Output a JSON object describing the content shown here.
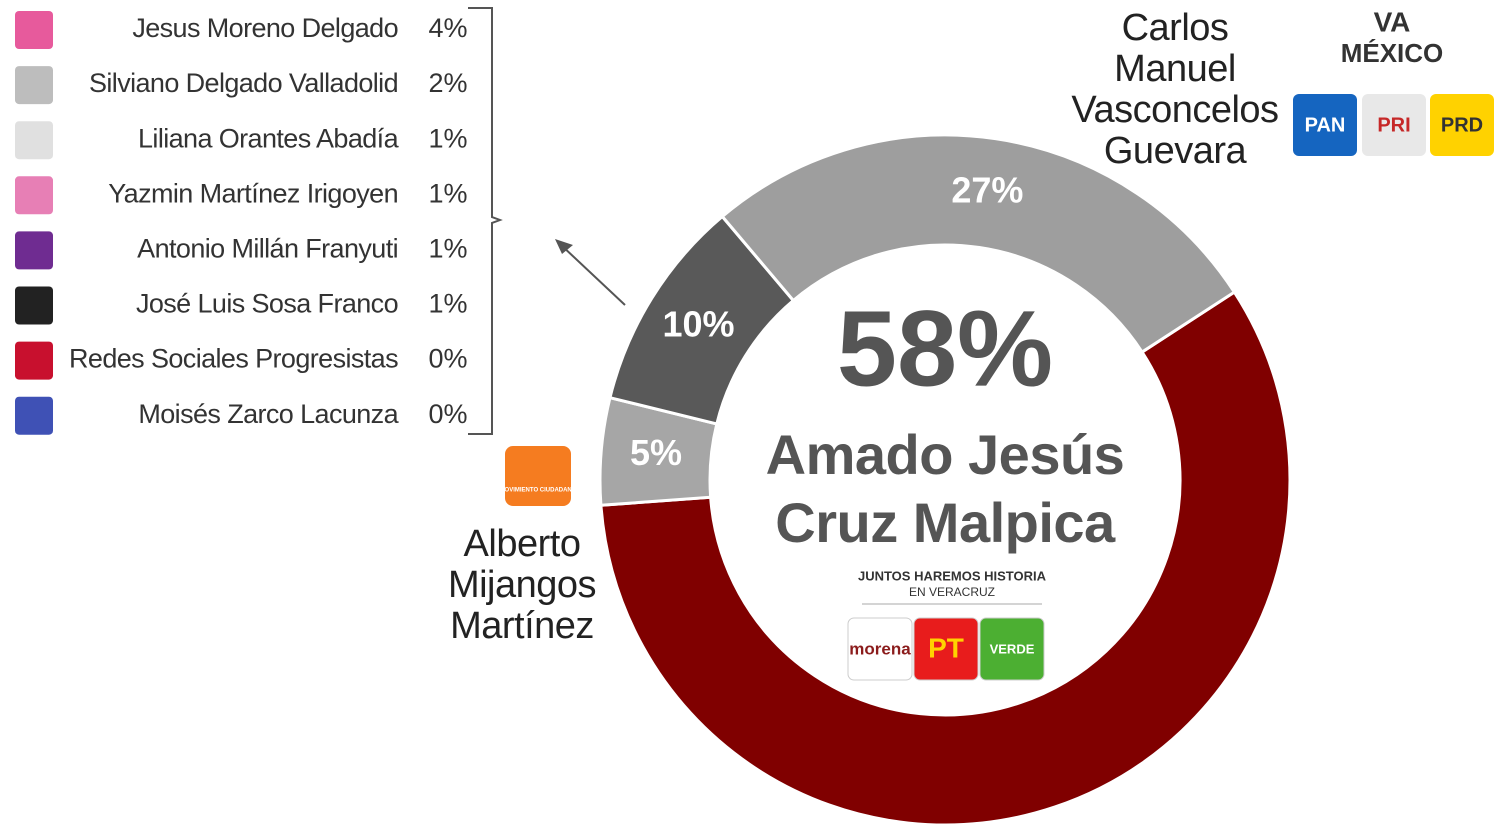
{
  "chart_data": {
    "type": "donut",
    "categories": [
      "Amado Jesús Cruz Malpica",
      "Alberto Mijangos Martínez",
      null,
      "Carlos Manuel Vasconcelos Guevara"
    ],
    "values": [
      58,
      5,
      10,
      27
    ],
    "value_labels": [
      "58%",
      "5%",
      "10%",
      "27%"
    ],
    "colors": [
      "#800000",
      "#a6a6a6",
      "#595959",
      "#9e9e9e"
    ]
  },
  "others": {
    "names": [
      "Jesus Moreno Delgado",
      "Silviano Delgado Valladolid",
      "Liliana Orantes Abadía",
      "Yazmin Martínez Irigoyen",
      "Antonio Millán Franyuti",
      "José Luis Sosa Franco",
      "Redes Sociales Progresistas",
      "Moisés Zarco Lacunza"
    ],
    "values": [
      4,
      2,
      1,
      1,
      1,
      1,
      0,
      0
    ],
    "value_labels": [
      "4%",
      "2%",
      "1%",
      "1%",
      "1%",
      "1%",
      "0%",
      "0%"
    ]
  },
  "logos": {
    "juntos": {
      "name": "JUNTOS HAREMOS HISTORIA",
      "subtitle": "EN VERACRUZ",
      "parties": [
        "morena",
        "PT",
        "VERDE"
      ]
    },
    "va_por_mexico": {
      "name": "VA",
      "subtitle": "MÉXICO",
      "parties": [
        "PAN",
        "PRI",
        "PRD"
      ]
    },
    "mc": "MOVIMIENTO CIUDADANO"
  }
}
